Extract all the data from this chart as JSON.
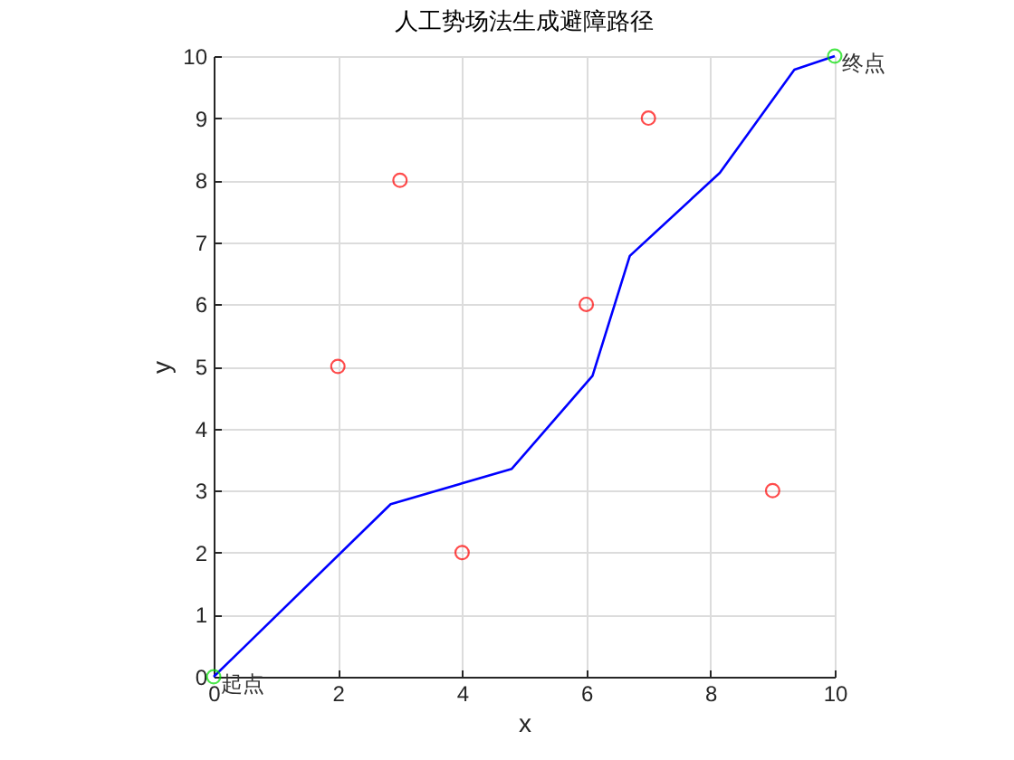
{
  "chart_data": {
    "type": "line",
    "title": "人工势场法生成避障路径",
    "xlabel": "x",
    "ylabel": "y",
    "xlim": [
      0,
      10
    ],
    "ylim": [
      0,
      10
    ],
    "xticks": [
      0,
      2,
      4,
      6,
      8,
      10
    ],
    "yticks": [
      0,
      1,
      2,
      3,
      4,
      5,
      6,
      7,
      8,
      9,
      10
    ],
    "grid": true,
    "series": [
      {
        "color": "#0000ff",
        "x": [
          0,
          2.85,
          4.8,
          6.1,
          6.7,
          8.15,
          9.35,
          10
        ],
        "values": [
          0,
          2.78,
          3.35,
          4.85,
          6.78,
          8.12,
          9.78,
          10
        ]
      },
      {
        "type": "scatter",
        "color": "#ff0000",
        "marker": "circle",
        "x": [
          2,
          3,
          4,
          6,
          7,
          9
        ],
        "values": [
          5,
          8,
          2,
          6,
          9,
          3
        ]
      },
      {
        "type": "scatter",
        "color": "#00dd00",
        "marker": "circle",
        "x": [
          0,
          10
        ],
        "values": [
          0,
          10
        ]
      }
    ],
    "annotations": [
      {
        "text": "起点",
        "x": 0,
        "y": 0
      },
      {
        "text": "终点",
        "x": 10,
        "y": 10
      }
    ]
  }
}
